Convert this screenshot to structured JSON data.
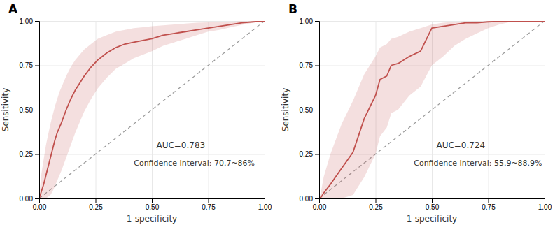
{
  "chart_data": [
    {
      "type": "line",
      "title": "A",
      "x_label": "1-specificity",
      "y_label": "Sensitivity",
      "annotations": [
        "AUC=0.783",
        "Confidence Interval: 70.7~86%"
      ],
      "x": [
        0.0,
        0.005,
        0.01,
        0.02,
        0.03,
        0.04,
        0.05,
        0.06,
        0.07,
        0.08,
        0.09,
        0.1,
        0.12,
        0.14,
        0.16,
        0.18,
        0.2,
        0.23,
        0.26,
        0.3,
        0.34,
        0.38,
        0.42,
        0.46,
        0.5,
        0.55,
        0.6,
        0.65,
        0.7,
        0.75,
        0.8,
        0.85,
        0.9,
        0.95,
        1.0
      ],
      "values": [
        0.0,
        0.02,
        0.04,
        0.08,
        0.13,
        0.18,
        0.23,
        0.28,
        0.33,
        0.37,
        0.4,
        0.43,
        0.5,
        0.56,
        0.61,
        0.65,
        0.69,
        0.74,
        0.78,
        0.82,
        0.85,
        0.87,
        0.88,
        0.89,
        0.9,
        0.92,
        0.93,
        0.94,
        0.95,
        0.96,
        0.97,
        0.98,
        0.99,
        0.995,
        1.0
      ],
      "ci_upper": [
        0.0,
        0.08,
        0.14,
        0.22,
        0.3,
        0.36,
        0.42,
        0.47,
        0.52,
        0.56,
        0.6,
        0.63,
        0.69,
        0.74,
        0.78,
        0.81,
        0.84,
        0.87,
        0.9,
        0.92,
        0.94,
        0.95,
        0.96,
        0.965,
        0.97,
        0.975,
        0.98,
        0.985,
        0.99,
        0.992,
        0.994,
        0.996,
        0.998,
        0.999,
        1.0
      ],
      "ci_lower": [
        0.0,
        0.0,
        0.0,
        0.0,
        0.0,
        0.01,
        0.02,
        0.04,
        0.07,
        0.1,
        0.13,
        0.16,
        0.23,
        0.3,
        0.37,
        0.43,
        0.49,
        0.56,
        0.62,
        0.68,
        0.73,
        0.76,
        0.79,
        0.81,
        0.83,
        0.86,
        0.88,
        0.9,
        0.92,
        0.94,
        0.95,
        0.965,
        0.978,
        0.99,
        1.0
      ],
      "color": "#C0504D",
      "xlim": [
        0,
        1
      ],
      "ylim": [
        0,
        1
      ],
      "xticks": [
        {
          "value": 0,
          "label": "0.00"
        },
        {
          "value": 0.25,
          "label": "0.25"
        },
        {
          "value": 0.5,
          "label": "0.50"
        },
        {
          "value": 0.75,
          "label": "0.75"
        },
        {
          "value": 1,
          "label": "1.00"
        }
      ],
      "yticks": [
        {
          "value": 0,
          "label": "0.00"
        },
        {
          "value": 0.25,
          "label": "0.25"
        },
        {
          "value": 0.5,
          "label": "0.50"
        },
        {
          "value": 0.75,
          "label": "0.75"
        },
        {
          "value": 1,
          "label": "1.00"
        }
      ],
      "grid": true
    },
    {
      "type": "line",
      "title": "B",
      "x_label": "1-specificity",
      "y_label": "Sensitivity",
      "annotations": [
        "AUC=0.724",
        "Confidence Interval: 55.9~88.9%"
      ],
      "x": [
        0.0,
        0.01,
        0.02,
        0.05,
        0.1,
        0.15,
        0.2,
        0.25,
        0.27,
        0.3,
        0.32,
        0.35,
        0.4,
        0.45,
        0.5,
        0.55,
        0.6,
        0.65,
        0.7,
        0.75,
        0.8,
        0.85,
        0.9,
        0.95,
        1.0
      ],
      "values": [
        0.0,
        0.01,
        0.03,
        0.08,
        0.17,
        0.26,
        0.45,
        0.58,
        0.67,
        0.69,
        0.75,
        0.76,
        0.8,
        0.83,
        0.96,
        0.97,
        0.98,
        0.99,
        0.99,
        0.995,
        0.998,
        1.0,
        1.0,
        1.0,
        1.0
      ],
      "ci_upper": [
        0.0,
        0.05,
        0.12,
        0.25,
        0.42,
        0.55,
        0.7,
        0.8,
        0.85,
        0.87,
        0.9,
        0.91,
        0.94,
        0.96,
        0.98,
        0.99,
        0.995,
        0.997,
        0.998,
        0.999,
        1.0,
        1.0,
        1.0,
        1.0,
        1.0
      ],
      "ci_lower": [
        0.0,
        0.0,
        0.0,
        0.0,
        0.0,
        0.02,
        0.12,
        0.25,
        0.35,
        0.4,
        0.48,
        0.5,
        0.58,
        0.63,
        0.75,
        0.8,
        0.86,
        0.9,
        0.93,
        0.96,
        0.98,
        0.995,
        1.0,
        1.0,
        1.0
      ],
      "color": "#C0504D",
      "xlim": [
        0,
        1
      ],
      "ylim": [
        0,
        1
      ],
      "xticks": [
        {
          "value": 0,
          "label": "0.00"
        },
        {
          "value": 0.25,
          "label": "0.25"
        },
        {
          "value": 0.5,
          "label": "0.50"
        },
        {
          "value": 0.75,
          "label": "0.75"
        },
        {
          "value": 1,
          "label": "1.00"
        }
      ],
      "yticks": [
        {
          "value": 0,
          "label": "0.00"
        },
        {
          "value": 0.25,
          "label": "0.25"
        },
        {
          "value": 0.5,
          "label": "0.50"
        },
        {
          "value": 0.75,
          "label": "0.75"
        },
        {
          "value": 1,
          "label": "1.00"
        }
      ],
      "grid": true
    }
  ]
}
